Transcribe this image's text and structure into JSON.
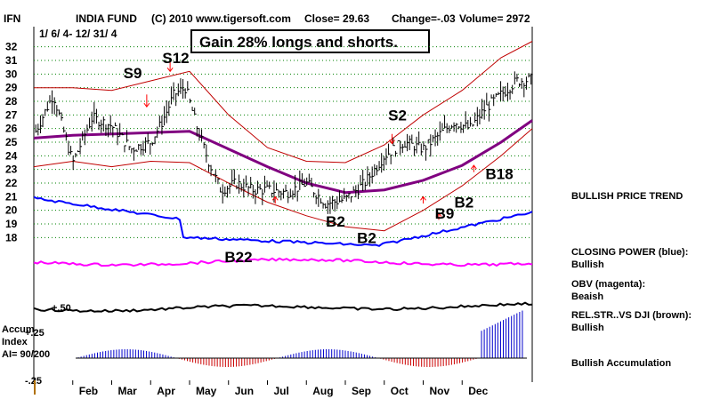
{
  "header": {
    "symbol": "IFN",
    "fund": "INDIA FUND",
    "copyright": "(C) 2010 www.tigersoft.com",
    "close": "Close=  29.63",
    "change": "Change=-.03",
    "volume": "Volume=  2972",
    "date_range": "1/ 6/ 4- 12/ 31/ 4"
  },
  "gain_box": "Gain 28% longs and shorts.",
  "signals": [
    {
      "label": "S9",
      "x": 2.3,
      "y": 29.7
    },
    {
      "label": "S12",
      "x": 3.3,
      "y": 30.8
    },
    {
      "label": "S2",
      "x": 9.1,
      "y": 26.6
    },
    {
      "label": "B18",
      "x": 11.6,
      "y": 22.3
    },
    {
      "label": "B2",
      "x": 10.8,
      "y": 20.2
    },
    {
      "label": "B9",
      "x": 10.3,
      "y": 19.4
    },
    {
      "label": "B2",
      "x": 7.5,
      "y": 18.8
    },
    {
      "label": "B2",
      "x": 8.3,
      "y": 17.6
    },
    {
      "label": "B22",
      "x": 4.9,
      "y": 16.2
    }
  ],
  "side_labels": {
    "trend": "BULLISH PRICE TREND",
    "closing_power_title": "CLOSING POWER (blue):",
    "closing_power_value": "Bullish",
    "obv_title": "OBV (magenta):",
    "obv_value": "Beaish",
    "relstr_title": "REL.STR..VS DJI (brown):",
    "relstr_value": "Bullish",
    "accum_summary": "Bullish Accumulation"
  },
  "accum_labels": {
    "title1": "Accum",
    "title2": "Index",
    "ai": "AI= 90/200",
    "plus50": "+.50",
    "plus25": "+.25",
    "minus25": "-.25"
  },
  "colors": {
    "price": "#000000",
    "bands": "#c00000",
    "ma": "#800080",
    "closing_power": "#0000ff",
    "obv": "#ff00ff",
    "rel_strength": "#000000",
    "accum_pos": "#0000cc",
    "accum_neg": "#cc0000",
    "grid": "#008000",
    "signal_arrow": "#ff0000"
  },
  "chart_data": {
    "type": "line",
    "title": "INDIA FUND",
    "x_ticks": [
      "Feb",
      "Mar",
      "Apr",
      "May",
      "Jun",
      "Jul",
      "Aug",
      "Sep",
      "Oct",
      "Nov",
      "Dec"
    ],
    "y_ticks": [
      18,
      19,
      20,
      21,
      22,
      23,
      24,
      25,
      26,
      27,
      28,
      29,
      30,
      31,
      32
    ],
    "ylim": [
      17.5,
      32.5
    ],
    "xlim": [
      0,
      12.8
    ],
    "price": {
      "x": [
        0,
        0.5,
        1.0,
        1.5,
        2.0,
        2.5,
        3.0,
        3.3,
        3.6,
        3.9,
        4.2,
        4.5,
        4.8,
        5.2,
        5.6,
        6.0,
        6.5,
        7.0,
        7.5,
        8.0,
        8.5,
        9.0,
        9.5,
        10.0,
        10.4,
        10.8,
        11.2,
        11.6,
        12.0,
        12.4,
        12.8
      ],
      "y": [
        25.5,
        28.5,
        23.5,
        26.8,
        26.2,
        24.5,
        25.0,
        26.5,
        28.5,
        29.0,
        26.0,
        23.5,
        21.5,
        22.0,
        21.5,
        21.5,
        21.3,
        22.0,
        20.5,
        20.8,
        22.0,
        24.0,
        25.0,
        24.5,
        25.5,
        26.5,
        26.0,
        27.5,
        28.5,
        29.5,
        29.6
      ]
    },
    "ma": {
      "x": [
        0,
        1,
        2,
        3,
        4,
        5,
        6,
        7,
        8,
        9,
        10,
        11,
        12,
        12.8
      ],
      "y": [
        25.3,
        25.5,
        25.6,
        25.7,
        25.8,
        24.5,
        23.2,
        22.0,
        21.3,
        21.5,
        22.2,
        23.3,
        25.0,
        26.6
      ]
    },
    "upper_band": {
      "x": [
        0,
        1,
        2,
        3,
        4,
        5,
        6,
        7,
        8,
        9,
        10,
        11,
        12,
        12.8
      ],
      "y": [
        29.0,
        29.0,
        28.8,
        29.5,
        30.2,
        27.0,
        24.6,
        23.6,
        23.5,
        24.8,
        27.0,
        28.8,
        31.2,
        32.4
      ]
    },
    "lower_band": {
      "x": [
        0,
        1,
        2,
        3,
        4,
        5,
        6,
        7,
        8,
        9,
        10,
        11,
        12,
        12.8
      ],
      "y": [
        23.2,
        23.6,
        23.2,
        23.6,
        23.5,
        22.0,
        20.6,
        19.6,
        18.8,
        18.5,
        20.0,
        21.8,
        24.0,
        26.0
      ]
    }
  }
}
